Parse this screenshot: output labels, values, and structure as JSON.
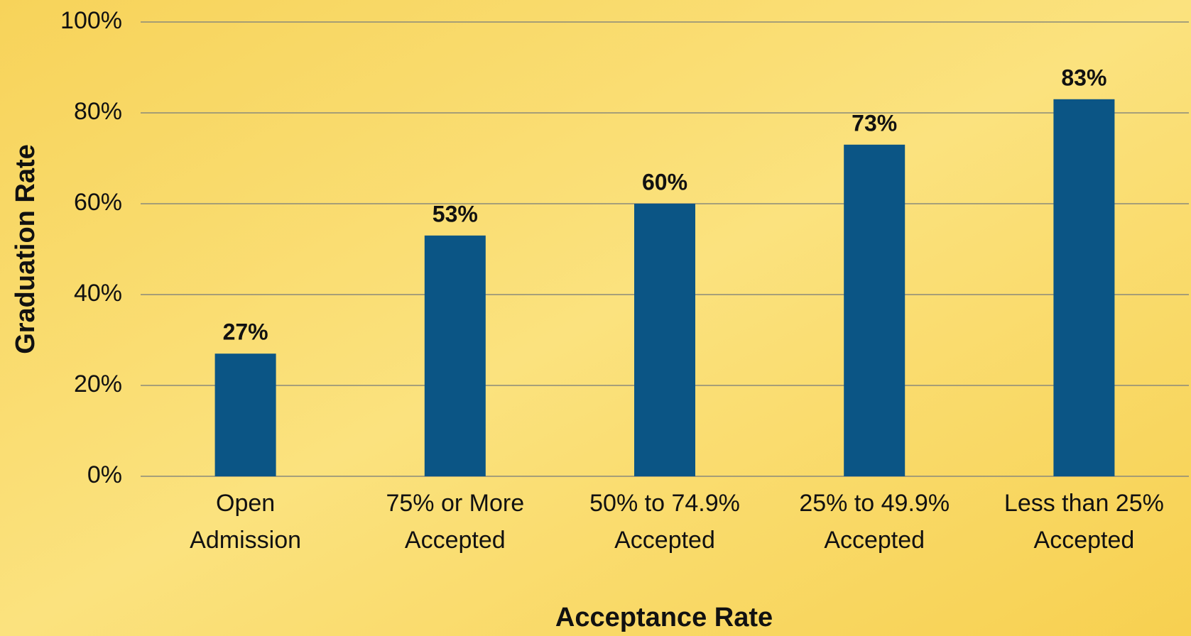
{
  "chart_data": {
    "type": "bar",
    "x_label": "Acceptance Rate",
    "y_label": "Graduation Rate",
    "categories": [
      "Open\nAdmission",
      "75% or More\nAccepted",
      "50% to 74.9%\nAccepted",
      "25% to 49.9%\nAccepted",
      "Less than 25%\nAccepted"
    ],
    "values": [
      27,
      53,
      60,
      73,
      83
    ],
    "value_labels": [
      "27%",
      "53%",
      "60%",
      "73%",
      "83%"
    ],
    "color": "#0b5585",
    "ylim": [
      0,
      100
    ],
    "yticks": [
      {
        "value": 0,
        "label": "0%"
      },
      {
        "value": 20,
        "label": "20%"
      },
      {
        "value": 40,
        "label": "40%"
      },
      {
        "value": 60,
        "label": "60%"
      },
      {
        "value": 80,
        "label": "80%"
      },
      {
        "value": 100,
        "label": "100%"
      }
    ],
    "grid": true
  }
}
